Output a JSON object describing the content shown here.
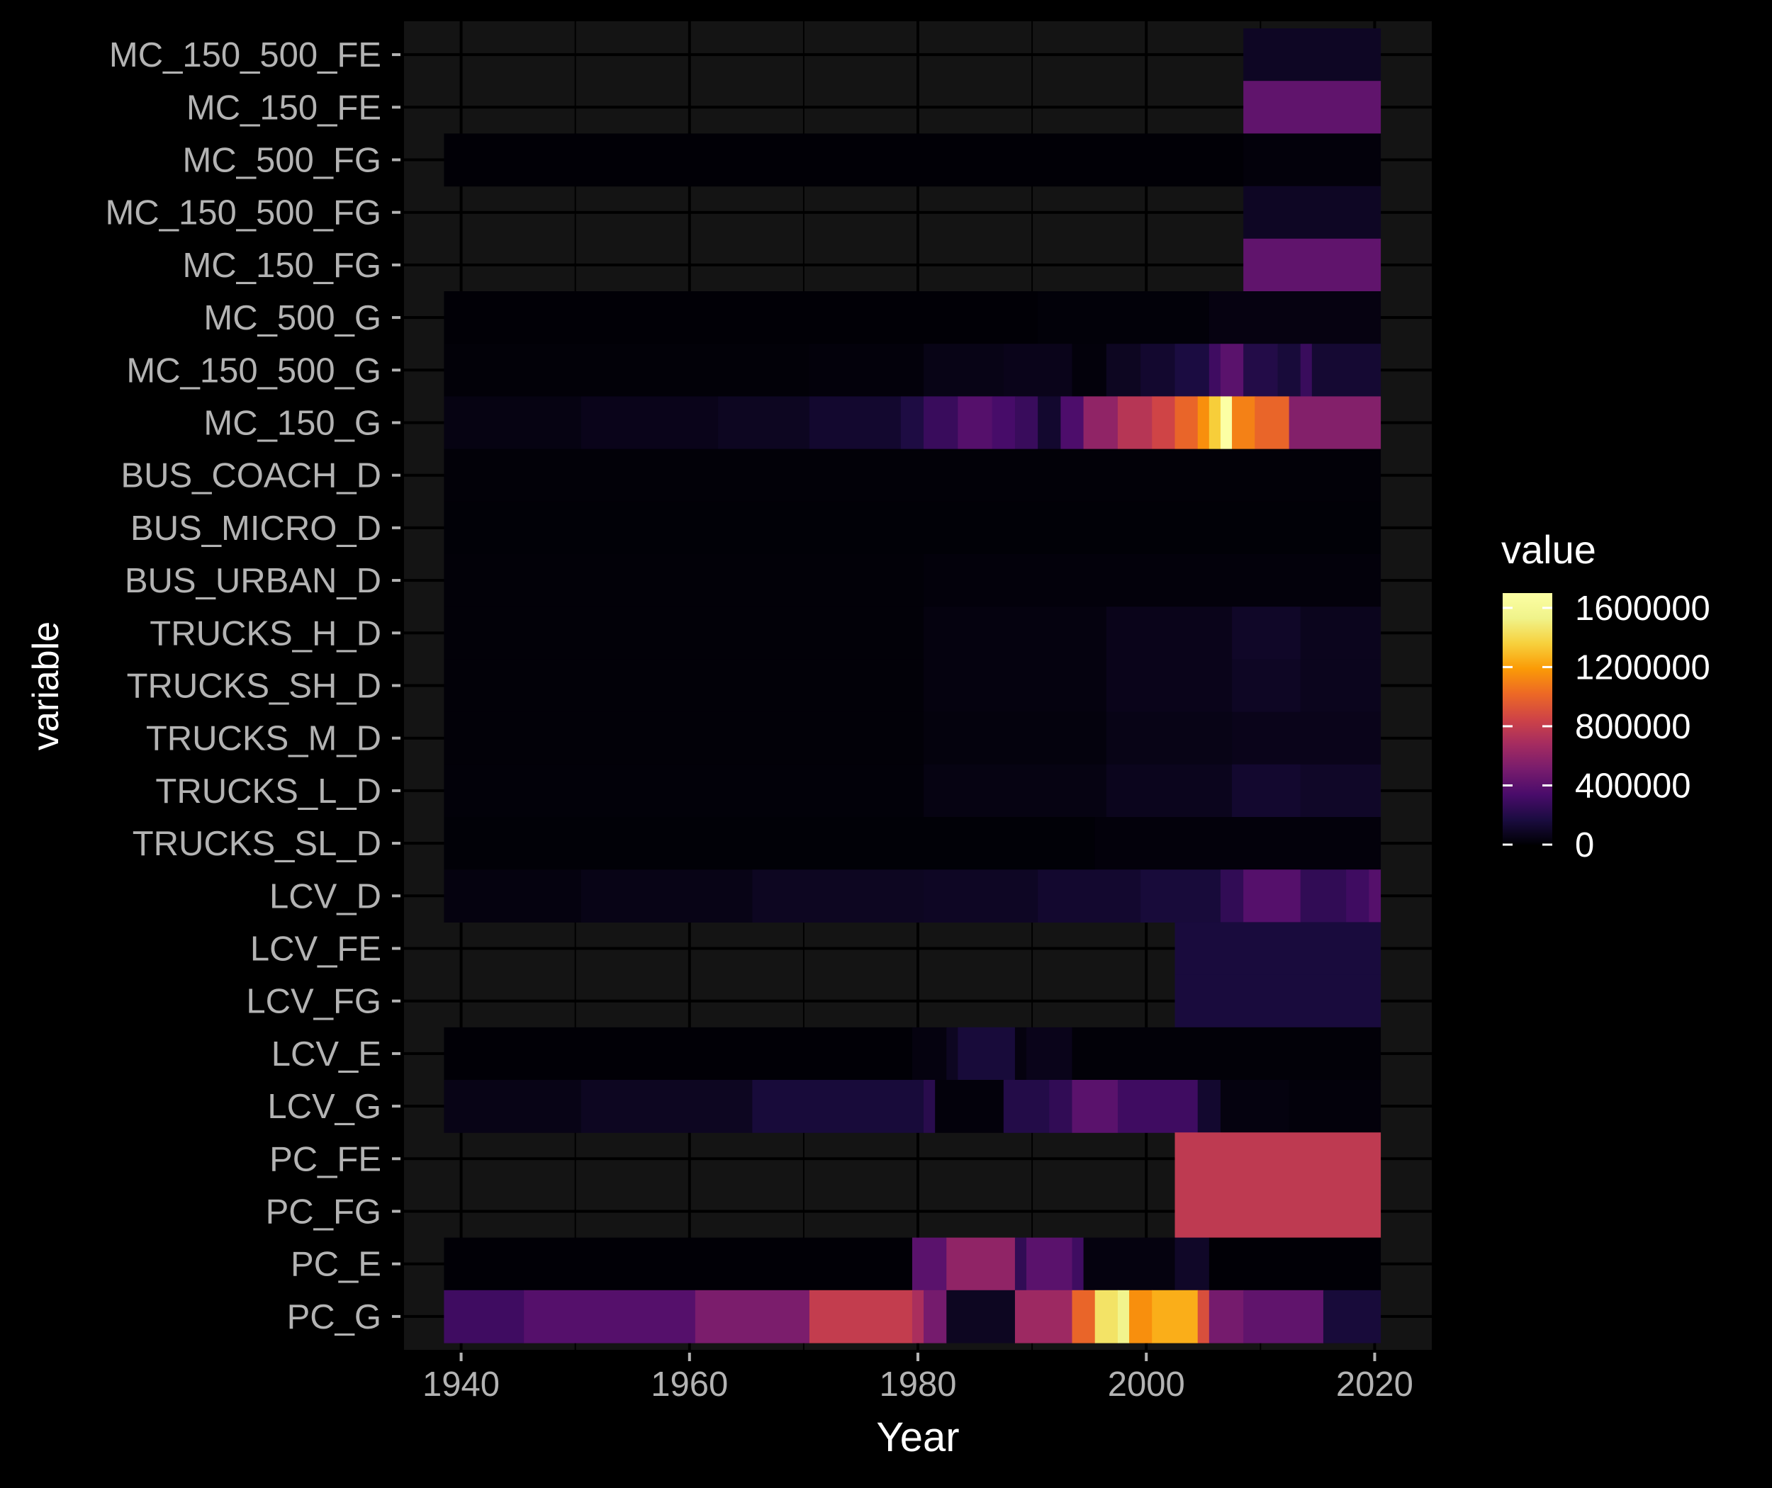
{
  "chart_data": {
    "type": "heatmap",
    "title": "",
    "xlabel": "Year",
    "ylabel": "variable",
    "xlim": [
      1935,
      2025
    ],
    "x_ticks": [
      1940,
      1960,
      1980,
      2000,
      2020
    ],
    "legend": {
      "title": "value",
      "position": "right",
      "ticks": [
        0,
        400000,
        800000,
        1200000,
        1600000
      ],
      "tick_labels": [
        "0",
        "400000",
        "800000",
        "1200000",
        "1600000"
      ],
      "min": 0,
      "max": 1700000
    },
    "colormap": "inferno",
    "panel_background": "#141414",
    "grid": true,
    "grid_color": "#000000",
    "categories": [
      "MC_150_500_FE",
      "MC_150_FE",
      "MC_500_FG",
      "MC_150_500_FG",
      "MC_150_FG",
      "MC_500_G",
      "MC_150_500_G",
      "MC_150_G",
      "BUS_COACH_D",
      "BUS_MICRO_D",
      "BUS_URBAN_D",
      "TRUCKS_H_D",
      "TRUCKS_SH_D",
      "TRUCKS_M_D",
      "TRUCKS_L_D",
      "TRUCKS_SL_D",
      "LCV_D",
      "LCV_FE",
      "LCV_FG",
      "LCV_E",
      "LCV_G",
      "PC_FE",
      "PC_FG",
      "PC_E",
      "PC_G"
    ],
    "series": [
      {
        "variable": "MC_150_500_FE",
        "segments": [
          [
            2009,
            2020,
            90000
          ]
        ]
      },
      {
        "variable": "MC_150_FE",
        "segments": [
          [
            2009,
            2020,
            420000
          ]
        ]
      },
      {
        "variable": "MC_500_FG",
        "segments": [
          [
            1939,
            2008,
            5000
          ],
          [
            2009,
            2020,
            20000
          ]
        ]
      },
      {
        "variable": "MC_150_500_FG",
        "segments": [
          [
            2009,
            2020,
            90000
          ]
        ]
      },
      {
        "variable": "MC_150_FG",
        "segments": [
          [
            2009,
            2020,
            420000
          ]
        ]
      },
      {
        "variable": "MC_500_G",
        "segments": [
          [
            1939,
            1990,
            5000
          ],
          [
            1991,
            2005,
            15000
          ],
          [
            2006,
            2020,
            35000
          ]
        ]
      },
      {
        "variable": "MC_150_500_G",
        "segments": [
          [
            1939,
            1970,
            10000
          ],
          [
            1971,
            1980,
            20000
          ],
          [
            1981,
            1987,
            50000
          ],
          [
            1988,
            1993,
            60000
          ],
          [
            1994,
            1996,
            20000
          ],
          [
            1997,
            1999,
            80000
          ],
          [
            2000,
            2002,
            120000
          ],
          [
            2003,
            2005,
            170000
          ],
          [
            2006,
            2006,
            300000
          ],
          [
            2007,
            2008,
            400000
          ],
          [
            2009,
            2011,
            200000
          ],
          [
            2012,
            2013,
            150000
          ],
          [
            2014,
            2014,
            280000
          ],
          [
            2015,
            2020,
            130000
          ]
        ]
      },
      {
        "variable": "MC_150_G",
        "segments": [
          [
            1939,
            1950,
            40000
          ],
          [
            1951,
            1962,
            60000
          ],
          [
            1963,
            1970,
            80000
          ],
          [
            1971,
            1978,
            120000
          ],
          [
            1979,
            1980,
            180000
          ],
          [
            1981,
            1983,
            280000
          ],
          [
            1984,
            1986,
            380000
          ],
          [
            1987,
            1988,
            330000
          ],
          [
            1989,
            1990,
            280000
          ],
          [
            1991,
            1992,
            120000
          ],
          [
            1993,
            1994,
            350000
          ],
          [
            1995,
            1997,
            600000
          ],
          [
            1998,
            2000,
            750000
          ],
          [
            2001,
            2002,
            850000
          ],
          [
            2003,
            2004,
            1000000
          ],
          [
            2005,
            2005,
            1150000
          ],
          [
            2006,
            2006,
            1350000
          ],
          [
            2007,
            2007,
            1700000
          ],
          [
            2008,
            2009,
            1100000
          ],
          [
            2010,
            2012,
            1000000
          ],
          [
            2013,
            2020,
            550000
          ]
        ]
      },
      {
        "variable": "BUS_COACH_D",
        "segments": [
          [
            1939,
            2020,
            10000
          ]
        ]
      },
      {
        "variable": "BUS_MICRO_D",
        "segments": [
          [
            1939,
            2020,
            8000
          ]
        ]
      },
      {
        "variable": "BUS_URBAN_D",
        "segments": [
          [
            1939,
            1980,
            10000
          ],
          [
            1981,
            2020,
            20000
          ]
        ]
      },
      {
        "variable": "TRUCKS_H_D",
        "segments": [
          [
            1939,
            1980,
            12000
          ],
          [
            1981,
            1996,
            30000
          ],
          [
            1997,
            2007,
            60000
          ],
          [
            2008,
            2013,
            100000
          ],
          [
            2014,
            2020,
            70000
          ]
        ]
      },
      {
        "variable": "TRUCKS_SH_D",
        "segments": [
          [
            1939,
            1980,
            12000
          ],
          [
            1981,
            1996,
            30000
          ],
          [
            1997,
            2007,
            60000
          ],
          [
            2008,
            2013,
            90000
          ],
          [
            2014,
            2020,
            70000
          ]
        ]
      },
      {
        "variable": "TRUCKS_M_D",
        "segments": [
          [
            1939,
            1980,
            12000
          ],
          [
            1981,
            1996,
            25000
          ],
          [
            1997,
            2007,
            50000
          ],
          [
            2008,
            2020,
            60000
          ]
        ]
      },
      {
        "variable": "TRUCKS_L_D",
        "segments": [
          [
            1939,
            1980,
            15000
          ],
          [
            1981,
            1996,
            40000
          ],
          [
            1997,
            2007,
            70000
          ],
          [
            2008,
            2013,
            120000
          ],
          [
            2014,
            2020,
            100000
          ]
        ]
      },
      {
        "variable": "TRUCKS_SL_D",
        "segments": [
          [
            1939,
            1995,
            8000
          ],
          [
            1996,
            2020,
            20000
          ]
        ]
      },
      {
        "variable": "LCV_D",
        "segments": [
          [
            1939,
            1950,
            30000
          ],
          [
            1951,
            1965,
            50000
          ],
          [
            1966,
            1980,
            80000
          ],
          [
            1981,
            1990,
            90000
          ],
          [
            1991,
            1999,
            120000
          ],
          [
            2000,
            2006,
            150000
          ],
          [
            2007,
            2008,
            250000
          ],
          [
            2009,
            2013,
            380000
          ],
          [
            2014,
            2017,
            250000
          ],
          [
            2018,
            2019,
            300000
          ],
          [
            2020,
            2020,
            380000
          ]
        ]
      },
      {
        "variable": "LCV_FE",
        "segments": [
          [
            2003,
            2020,
            160000
          ]
        ]
      },
      {
        "variable": "LCV_FG",
        "segments": [
          [
            2003,
            2020,
            160000
          ]
        ]
      },
      {
        "variable": "LCV_E",
        "segments": [
          [
            1939,
            1979,
            5000
          ],
          [
            1980,
            1982,
            30000
          ],
          [
            1983,
            1983,
            80000
          ],
          [
            1984,
            1988,
            150000
          ],
          [
            1989,
            1989,
            30000
          ],
          [
            1990,
            1993,
            60000
          ],
          [
            1994,
            2020,
            10000
          ]
        ]
      },
      {
        "variable": "LCV_G",
        "segments": [
          [
            1939,
            1950,
            50000
          ],
          [
            1951,
            1965,
            80000
          ],
          [
            1966,
            1980,
            150000
          ],
          [
            1981,
            1981,
            220000
          ],
          [
            1982,
            1987,
            20000
          ],
          [
            1988,
            1991,
            200000
          ],
          [
            1992,
            1993,
            250000
          ],
          [
            1994,
            1997,
            400000
          ],
          [
            1998,
            2004,
            300000
          ],
          [
            2005,
            2006,
            120000
          ],
          [
            2007,
            2012,
            30000
          ],
          [
            2013,
            2020,
            20000
          ]
        ]
      },
      {
        "variable": "PC_FE",
        "segments": [
          [
            2003,
            2020,
            780000
          ]
        ]
      },
      {
        "variable": "PC_FG",
        "segments": [
          [
            2003,
            2020,
            780000
          ]
        ]
      },
      {
        "variable": "PC_E",
        "segments": [
          [
            1939,
            1979,
            5000
          ],
          [
            1980,
            1982,
            400000
          ],
          [
            1983,
            1988,
            600000
          ],
          [
            1989,
            1989,
            250000
          ],
          [
            1990,
            1993,
            400000
          ],
          [
            1994,
            1994,
            300000
          ],
          [
            1995,
            2002,
            30000
          ],
          [
            2003,
            2005,
            100000
          ],
          [
            2006,
            2020,
            5000
          ]
        ]
      },
      {
        "variable": "PC_G",
        "segments": [
          [
            1939,
            1945,
            300000
          ],
          [
            1946,
            1960,
            380000
          ],
          [
            1961,
            1970,
            520000
          ],
          [
            1971,
            1979,
            800000
          ],
          [
            1980,
            1980,
            700000
          ],
          [
            1981,
            1982,
            500000
          ],
          [
            1983,
            1988,
            80000
          ],
          [
            1989,
            1993,
            650000
          ],
          [
            1994,
            1995,
            1000000
          ],
          [
            1996,
            1997,
            1450000
          ],
          [
            1998,
            1998,
            1550000
          ],
          [
            1999,
            2000,
            1150000
          ],
          [
            2001,
            2004,
            1250000
          ],
          [
            2005,
            2005,
            900000
          ],
          [
            2006,
            2008,
            500000
          ],
          [
            2009,
            2015,
            420000
          ],
          [
            2016,
            2020,
            150000
          ]
        ]
      }
    ]
  }
}
